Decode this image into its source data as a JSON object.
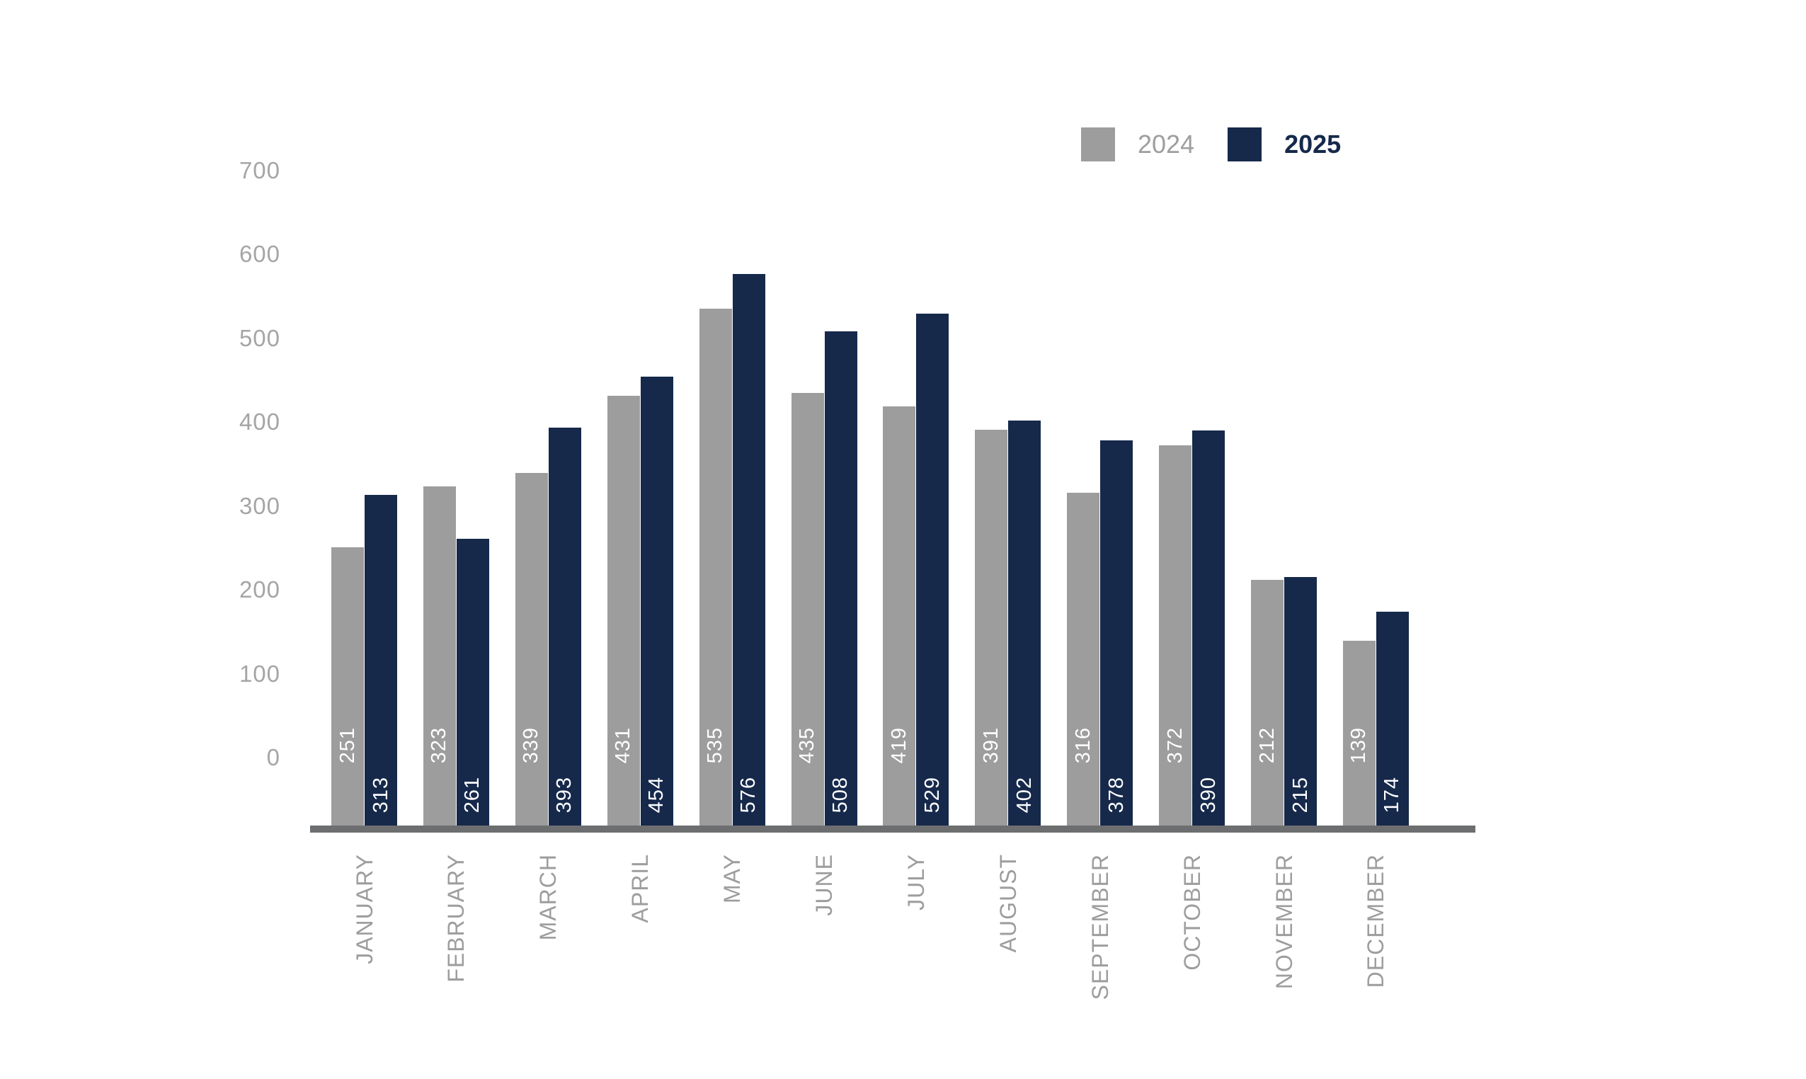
{
  "legend": {
    "items": [
      {
        "label": "2024",
        "color": "#9d9d9d"
      },
      {
        "label": "2025",
        "color": "#16294b"
      }
    ]
  },
  "chart_data": {
    "type": "bar",
    "title": "",
    "xlabel": "",
    "ylabel": "",
    "categories": [
      "JANUARY",
      "FEBRUARY",
      "MARCH",
      "APRIL",
      "MAY",
      "JUNE",
      "JULY",
      "AUGUST",
      "SEPTEMBER",
      "OCTOBER",
      "NOVEMBER",
      "DECEMBER"
    ],
    "series": [
      {
        "name": "2024",
        "color": "#9d9d9d",
        "values": [
          251,
          323,
          339,
          431,
          535,
          435,
          419,
          391,
          316,
          372,
          212,
          139
        ]
      },
      {
        "name": "2025",
        "color": "#16294b",
        "values": [
          313,
          261,
          393,
          454,
          576,
          508,
          529,
          402,
          378,
          390,
          215,
          174
        ]
      }
    ],
    "ylim": [
      0,
      700
    ],
    "yticks": [
      0,
      100,
      200,
      300,
      400,
      500,
      600,
      700
    ],
    "grid": false,
    "legend_position": "top-right",
    "value_labels": "white, rotated 90deg, inside bars near base; 2024 labels sit higher than 2025 labels",
    "category_labels": "rotated 90deg, below axis, top-aligned",
    "axis_line_color": "#6d6e70",
    "tick_label_color": "#a5a5a5",
    "category_label_color": "#9d9d9d",
    "value_label_color": "#ffffff",
    "background_color": "#ffffff"
  }
}
